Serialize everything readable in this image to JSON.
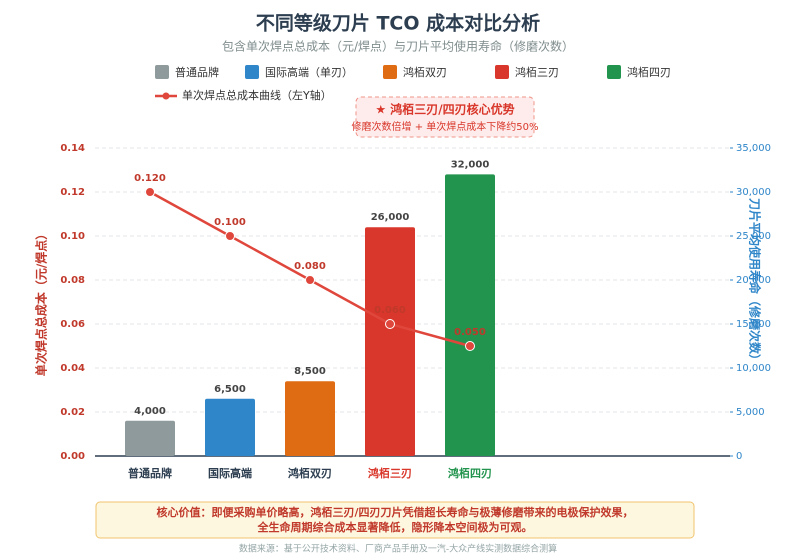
{
  "chart_data": {
    "type": "bar-line",
    "title": "不同等级刀片 TCO 成本对比分析",
    "subtitle": "包含单次焊点总成本（元/焊点）与刀片平均使用寿命（修磨次数）",
    "categories": [
      "普通品牌",
      "国际高端",
      "鸿栢双刃",
      "鸿栢三刃",
      "鸿栢四刃"
    ],
    "highlight": [
      false,
      false,
      false,
      true,
      true
    ],
    "legend_items": [
      {
        "name": "普通品牌"
      },
      {
        "name": "国际高端（单刃）"
      },
      {
        "name": "鸿栢双刃"
      },
      {
        "name": "鸿栢三刃"
      },
      {
        "name": "鸿栢四刃"
      }
    ],
    "series": [
      {
        "type": "bar",
        "axis": "y2",
        "values": [
          4000,
          6500,
          8500,
          26000,
          32000
        ],
        "value_labels": [
          "4,000",
          "6,500",
          "8,500",
          "26,000",
          "32,000"
        ],
        "colors": [
          "#8e9a9b",
          "#2f86c9",
          "#df6b12",
          "#d9372b",
          "#22944e"
        ]
      },
      {
        "type": "line",
        "name": "单次焊点总成本曲线（左Y轴）",
        "color": "#e0473c",
        "values": [
          0.12,
          0.1,
          0.08,
          0.06,
          0.05
        ],
        "value_labels": [
          "0.120",
          "0.100",
          "0.080",
          "0.060",
          "0.050"
        ]
      }
    ],
    "ylabel": "单次焊点总成本（元/焊点）",
    "y2label": "刀片平均使用寿命（修磨次数）",
    "ylim": [
      0,
      0.14
    ],
    "yticks": [
      {
        "value": 0,
        "label": "0.00"
      },
      {
        "value": 0.02,
        "label": "0.02"
      },
      {
        "value": 0.04,
        "label": "0.04"
      },
      {
        "value": 0.06,
        "label": "0.06"
      },
      {
        "value": 0.08,
        "label": "0.08"
      },
      {
        "value": 0.1,
        "label": "0.10"
      },
      {
        "value": 0.12,
        "label": "0.12"
      },
      {
        "value": 0.14,
        "label": "0.14"
      }
    ],
    "y2lim": [
      0,
      35000
    ],
    "y2ticks": [
      0,
      {
        "value": 5000,
        "label": "5,000"
      },
      {
        "value": 10000,
        "label": "10,000"
      },
      {
        "value": 15000,
        "label": "15,000"
      },
      {
        "value": 20000,
        "label": "20,000"
      },
      {
        "value": 25000,
        "label": "25,000"
      },
      {
        "value": 30000,
        "label": "30,000"
      },
      {
        "value": 35000,
        "label": "35,000"
      }
    ],
    "grid": true,
    "annotation": {
      "title": "★ 鸿栢三刃/四刃核心优势",
      "text": "修磨次数倍增 + 单次焊点成本下降约50%"
    },
    "note": [
      "核心价值：即便采购单价略高，鸿栢三刃/四刃刀片凭借超长寿命与极薄修磨带来的电极保护效果，",
      "全生命周期综合成本显著降低，隐形降本空间极为可观。"
    ],
    "source": "数据来源：基于公开技术资料、厂商产品手册及一汽-大众产线实测数据综合测算"
  }
}
